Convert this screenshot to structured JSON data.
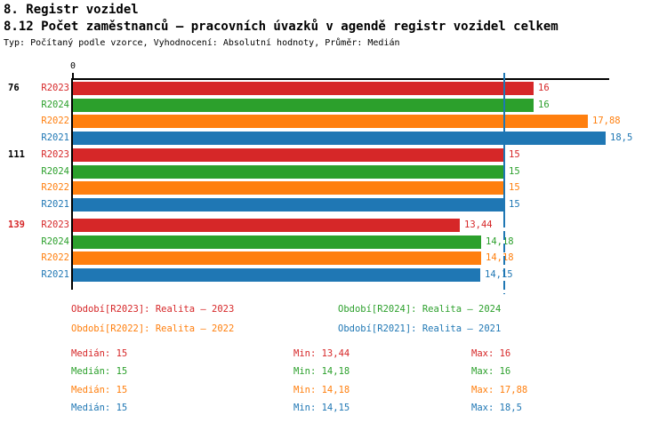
{
  "header": {
    "title": "8. Registr vozidel",
    "subtitle": "8.12 Počet zaměstnanců – pracovních úvazků v agendě registr vozidel celkem",
    "meta": "Typ: Počítaný podle vzorce, Vyhodnocení: Absolutní hodnoty, Průměr: Medián"
  },
  "colors": {
    "R2023": "#d62728",
    "R2024": "#2ca02c",
    "R2022": "#ff7f0e",
    "R2021": "#1f77b4",
    "axis": "#000000",
    "median_line": "#1f77b4",
    "group_label_default": "#000000",
    "group_label_highlight": "#d62728"
  },
  "chart_data": {
    "type": "bar",
    "orientation": "horizontal",
    "title": "8.12 Počet zaměstnanců – pracovních úvazků v agendě registr vozidel celkem",
    "x_origin_label": "0",
    "xlim": [
      0,
      18.6
    ],
    "grid": false,
    "median_reference": 15,
    "series_order": [
      "R2023",
      "R2024",
      "R2022",
      "R2021"
    ],
    "groups": [
      {
        "label": "76",
        "label_color": "#000000",
        "bars": [
          {
            "series": "R2023",
            "value": 16,
            "value_label": "16"
          },
          {
            "series": "R2024",
            "value": 16,
            "value_label": "16"
          },
          {
            "series": "R2022",
            "value": 17.88,
            "value_label": "17,88"
          },
          {
            "series": "R2021",
            "value": 18.5,
            "value_label": "18,5"
          }
        ]
      },
      {
        "label": "111",
        "label_color": "#000000",
        "bars": [
          {
            "series": "R2023",
            "value": 15,
            "value_label": "15"
          },
          {
            "series": "R2024",
            "value": 15,
            "value_label": "15"
          },
          {
            "series": "R2022",
            "value": 15,
            "value_label": "15"
          },
          {
            "series": "R2021",
            "value": 15,
            "value_label": "15"
          }
        ]
      },
      {
        "label": "139",
        "label_color": "#d62728",
        "bars": [
          {
            "series": "R2023",
            "value": 13.44,
            "value_label": "13,44"
          },
          {
            "series": "R2024",
            "value": 14.18,
            "value_label": "14,18"
          },
          {
            "series": "R2022",
            "value": 14.18,
            "value_label": "14,18"
          },
          {
            "series": "R2021",
            "value": 14.15,
            "value_label": "14,15"
          }
        ]
      }
    ]
  },
  "legend": {
    "items": [
      {
        "label": "Období[R2023]: Realita – 2023",
        "color": "#d62728"
      },
      {
        "label": "Období[R2024]: Realita – 2024",
        "color": "#2ca02c"
      },
      {
        "label": "Období[R2022]: Realita – 2022",
        "color": "#ff7f0e"
      },
      {
        "label": "Období[R2021]: Realita – 2021",
        "color": "#1f77b4"
      }
    ]
  },
  "stats": {
    "rows": [
      {
        "median": "Medián: 15",
        "min": "Min: 13,44",
        "max": "Max: 16",
        "color": "#d62728"
      },
      {
        "median": "Medián: 15",
        "min": "Min: 14,18",
        "max": "Max: 16",
        "color": "#2ca02c"
      },
      {
        "median": "Medián: 15",
        "min": "Min: 14,18",
        "max": "Max: 17,88",
        "color": "#ff7f0e"
      },
      {
        "median": "Medián: 15",
        "min": "Min: 14,15",
        "max": "Max: 18,5",
        "color": "#1f77b4"
      }
    ]
  }
}
